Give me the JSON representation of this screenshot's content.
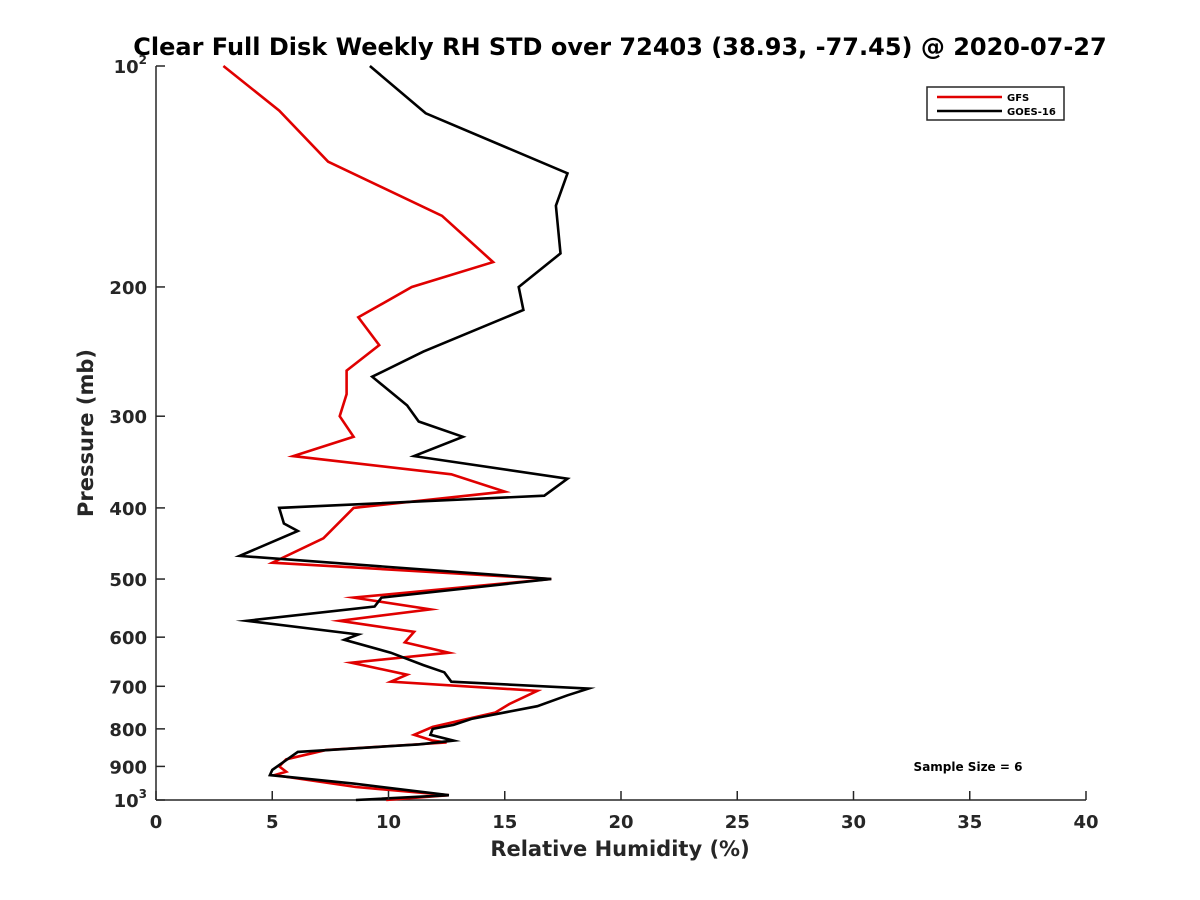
{
  "chart_data": {
    "type": "line",
    "title": "Clear Full Disk Weekly RH STD over 72403 (38.93, -77.45) @ 2020-07-27",
    "xlabel": "Relative Humidity (%)",
    "ylabel": "Pressure (mb)",
    "xlim": [
      0,
      40
    ],
    "ylim": [
      100,
      1000
    ],
    "y_scale": "log",
    "y_reversed": true,
    "x_ticks": [
      "0",
      "5",
      "10",
      "15",
      "20",
      "25",
      "30",
      "35",
      "40"
    ],
    "y_ticks": [
      {
        "value": 100,
        "base": "10",
        "exp": "2"
      },
      {
        "value": 200,
        "label": "200"
      },
      {
        "value": 300,
        "label": "300"
      },
      {
        "value": 400,
        "label": "400"
      },
      {
        "value": 500,
        "label": "500"
      },
      {
        "value": 600,
        "label": "600"
      },
      {
        "value": 700,
        "label": "700"
      },
      {
        "value": 800,
        "label": "800"
      },
      {
        "value": 900,
        "label": "900"
      },
      {
        "value": 1000,
        "base": "10",
        "exp": "3"
      }
    ],
    "legend": {
      "position": "top-right"
    },
    "annotation": "Sample Size = 6",
    "series": [
      {
        "name": "GFS",
        "color": "#e00000",
        "points": [
          [
            2.9,
            100
          ],
          [
            5.3,
            115
          ],
          [
            7.4,
            135
          ],
          [
            12.3,
            160
          ],
          [
            14.5,
            185
          ],
          [
            11.0,
            200
          ],
          [
            8.7,
            220
          ],
          [
            9.6,
            240
          ],
          [
            8.2,
            260
          ],
          [
            8.2,
            280
          ],
          [
            7.9,
            300
          ],
          [
            8.5,
            320
          ],
          [
            5.9,
            340
          ],
          [
            12.7,
            360
          ],
          [
            15.0,
            380
          ],
          [
            8.5,
            400
          ],
          [
            7.2,
            440
          ],
          [
            5.0,
            475
          ],
          [
            17.0,
            500
          ],
          [
            8.5,
            530
          ],
          [
            11.8,
            550
          ],
          [
            7.9,
            570
          ],
          [
            11.1,
            590
          ],
          [
            10.7,
            610
          ],
          [
            12.6,
            630
          ],
          [
            8.4,
            650
          ],
          [
            10.8,
            675
          ],
          [
            10.1,
            690
          ],
          [
            16.4,
            710
          ],
          [
            15.2,
            740
          ],
          [
            14.6,
            760
          ],
          [
            11.9,
            795
          ],
          [
            11.1,
            815
          ],
          [
            11.9,
            830
          ],
          [
            12.5,
            835
          ],
          [
            7.3,
            855
          ],
          [
            5.6,
            880
          ],
          [
            5.3,
            900
          ],
          [
            5.6,
            915
          ],
          [
            5.1,
            925
          ],
          [
            8.6,
            960
          ],
          [
            12.6,
            985
          ],
          [
            9.9,
            1000
          ]
        ]
      },
      {
        "name": "GOES-16",
        "color": "#000000",
        "points": [
          [
            9.2,
            100
          ],
          [
            11.6,
            116
          ],
          [
            17.7,
            140
          ],
          [
            17.2,
            155
          ],
          [
            17.4,
            180
          ],
          [
            15.6,
            200
          ],
          [
            15.8,
            215
          ],
          [
            11.5,
            245
          ],
          [
            9.3,
            265
          ],
          [
            10.8,
            290
          ],
          [
            11.3,
            305
          ],
          [
            13.2,
            320
          ],
          [
            11.1,
            340
          ],
          [
            17.7,
            365
          ],
          [
            16.7,
            385
          ],
          [
            5.3,
            400
          ],
          [
            5.5,
            420
          ],
          [
            6.1,
            430
          ],
          [
            3.6,
            465
          ],
          [
            17.0,
            500
          ],
          [
            9.7,
            530
          ],
          [
            9.4,
            545
          ],
          [
            3.9,
            570
          ],
          [
            8.7,
            595
          ],
          [
            8.1,
            605
          ],
          [
            10.1,
            630
          ],
          [
            11.5,
            655
          ],
          [
            12.4,
            670
          ],
          [
            12.7,
            690
          ],
          [
            18.6,
            705
          ],
          [
            17.7,
            720
          ],
          [
            16.4,
            745
          ],
          [
            13.6,
            775
          ],
          [
            12.8,
            790
          ],
          [
            11.9,
            800
          ],
          [
            11.8,
            815
          ],
          [
            12.8,
            830
          ],
          [
            11.3,
            840
          ],
          [
            6.1,
            860
          ],
          [
            5.0,
            910
          ],
          [
            4.9,
            925
          ],
          [
            8.5,
            950
          ],
          [
            12.6,
            985
          ],
          [
            8.6,
            1000
          ]
        ]
      }
    ]
  }
}
